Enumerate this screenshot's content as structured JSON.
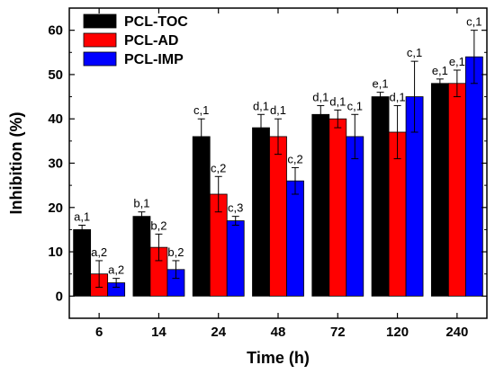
{
  "chart_data": {
    "type": "bar",
    "xlabel": "Time (h)",
    "ylabel": "Inhibition (%)",
    "ylim": [
      -5,
      65
    ],
    "yticks": [
      0,
      10,
      20,
      30,
      40,
      50,
      60
    ],
    "categories": [
      "6",
      "14",
      "24",
      "48",
      "72",
      "120",
      "240"
    ],
    "legend_position": "top-left",
    "grid": false,
    "series": [
      {
        "name": "PCL-TOC",
        "color": "#000000",
        "values": [
          15,
          18,
          36,
          38,
          41,
          45,
          48
        ],
        "errors": [
          1,
          1,
          4,
          3,
          2,
          1,
          1
        ],
        "labels": [
          "a,1",
          "b,1",
          "c,1",
          "d,1",
          "d,1",
          "e,1",
          "e,1"
        ]
      },
      {
        "name": "PCL-AD",
        "color": "#ff0000",
        "values": [
          5,
          11,
          23,
          36,
          40,
          37,
          48
        ],
        "errors": [
          3,
          3,
          4,
          4,
          2,
          6,
          3
        ],
        "labels": [
          "a,2",
          "b,2",
          "c,2",
          "d,1",
          "d,1",
          "d,1",
          "e,1"
        ]
      },
      {
        "name": "PCL-IMP",
        "color": "#0000ff",
        "values": [
          3,
          6,
          17,
          26,
          36,
          45,
          54
        ],
        "errors": [
          1,
          2,
          1,
          3,
          5,
          8,
          6
        ],
        "labels": [
          "a,2",
          "b,2",
          "c,3",
          "c,2",
          "c,1",
          "c,1",
          "c,1"
        ]
      }
    ]
  }
}
